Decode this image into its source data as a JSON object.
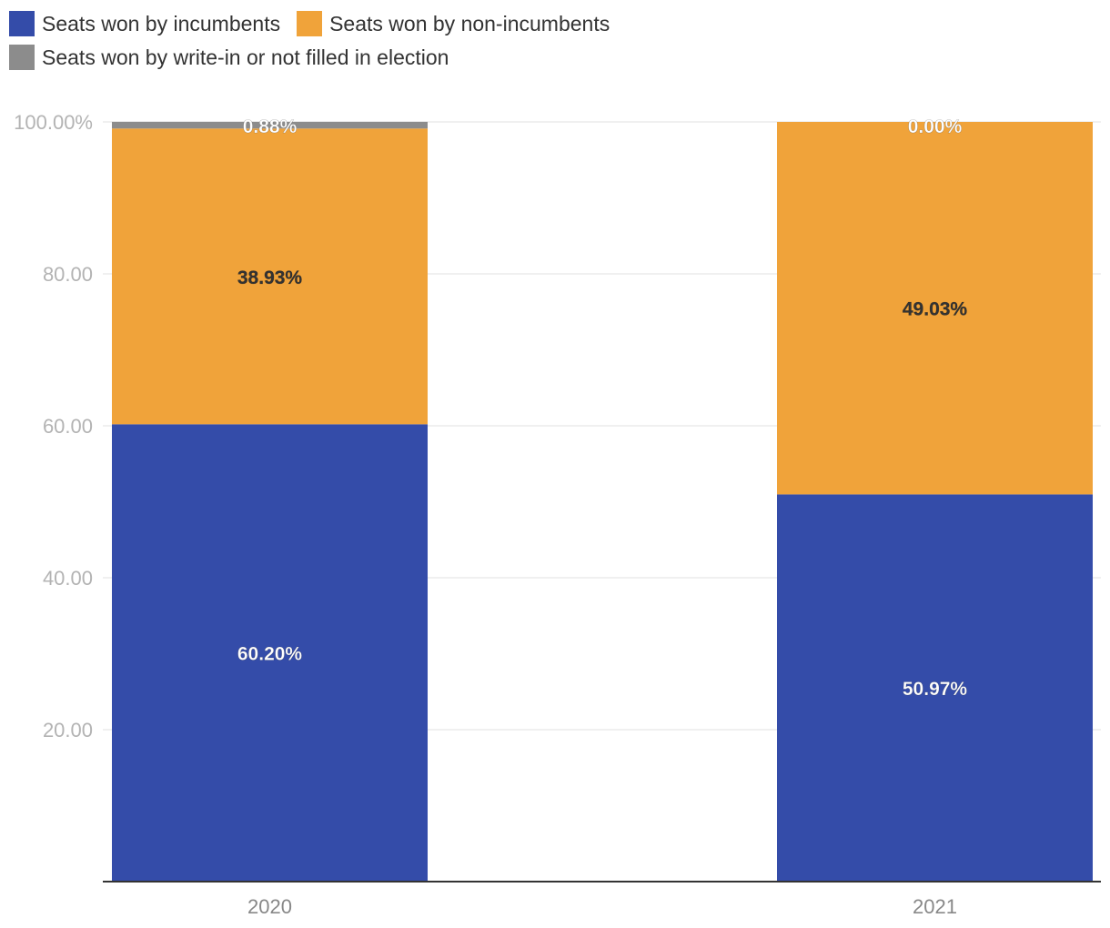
{
  "chart_data": {
    "type": "bar",
    "stacked": true,
    "categories": [
      "2020",
      "2021"
    ],
    "series": [
      {
        "name": "Seats won by incumbents",
        "color": "#344ca9",
        "values": [
          60.2,
          50.97
        ],
        "labels": [
          "60.20%",
          "50.97%"
        ],
        "label_color": "#ffffff"
      },
      {
        "name": "Seats won by non-incumbents",
        "color": "#f0a33a",
        "values": [
          38.93,
          49.03
        ],
        "labels": [
          "38.93%",
          "49.03%"
        ],
        "label_color": "#333333"
      },
      {
        "name": "Seats won by write-in or not filled in election",
        "color": "#8c8c8c",
        "values": [
          0.88,
          0.0
        ],
        "labels": [
          "0.88%",
          "0.00%"
        ],
        "label_color": "#ffffff"
      }
    ],
    "yticks": [
      {
        "value": 20,
        "label": "20.00"
      },
      {
        "value": 40,
        "label": "40.00"
      },
      {
        "value": 60,
        "label": "60.00"
      },
      {
        "value": 80,
        "label": "80.00"
      },
      {
        "value": 100,
        "label": "100.00%"
      }
    ],
    "ylim": [
      0,
      100
    ],
    "grid": true,
    "legend_position": "top-left"
  }
}
